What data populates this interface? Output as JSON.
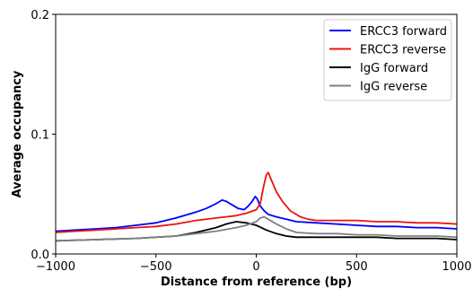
{
  "chart_data": {
    "type": "line",
    "xlabel": "Distance from reference (bp)",
    "ylabel": "Average occupancy",
    "xlim": [
      -1000,
      1000
    ],
    "ylim": [
      0,
      0.2
    ],
    "x_ticks": [
      -1000,
      -500,
      0,
      500,
      1000
    ],
    "x_tick_labels": [
      "−1000",
      "−500",
      "0",
      "500",
      "1000"
    ],
    "y_ticks": [
      0,
      0.1,
      0.2
    ],
    "y_tick_labels": [
      "0.0",
      "0.1",
      "0.2"
    ],
    "grid": false,
    "legend_position": "top-right",
    "series": [
      {
        "name": "ERCC3 forward",
        "color": "#0000ff",
        "x": [
          -1000,
          -900,
          -800,
          -700,
          -600,
          -500,
          -400,
          -300,
          -250,
          -200,
          -170,
          -150,
          -120,
          -90,
          -60,
          -40,
          -20,
          -5,
          5,
          20,
          40,
          60,
          100,
          150,
          200,
          300,
          400,
          500,
          600,
          700,
          800,
          900,
          1000
        ],
        "y": [
          0.019,
          0.02,
          0.021,
          0.022,
          0.024,
          0.026,
          0.03,
          0.035,
          0.038,
          0.042,
          0.045,
          0.044,
          0.041,
          0.038,
          0.037,
          0.04,
          0.044,
          0.048,
          0.046,
          0.04,
          0.036,
          0.033,
          0.031,
          0.029,
          0.027,
          0.026,
          0.025,
          0.024,
          0.023,
          0.023,
          0.022,
          0.022,
          0.021
        ]
      },
      {
        "name": "ERCC3 reverse",
        "color": "#ee1111",
        "x": [
          -1000,
          -900,
          -800,
          -700,
          -600,
          -500,
          -400,
          -300,
          -200,
          -100,
          -50,
          0,
          20,
          35,
          50,
          60,
          70,
          85,
          100,
          130,
          170,
          220,
          260,
          300,
          400,
          500,
          600,
          700,
          800,
          900,
          1000
        ],
        "y": [
          0.018,
          0.019,
          0.02,
          0.021,
          0.022,
          0.023,
          0.025,
          0.028,
          0.03,
          0.032,
          0.034,
          0.037,
          0.042,
          0.055,
          0.066,
          0.068,
          0.064,
          0.058,
          0.052,
          0.044,
          0.036,
          0.031,
          0.029,
          0.028,
          0.028,
          0.028,
          0.027,
          0.027,
          0.026,
          0.026,
          0.025
        ]
      },
      {
        "name": "IgG forward",
        "color": "#000000",
        "x": [
          -1000,
          -800,
          -600,
          -400,
          -300,
          -200,
          -150,
          -100,
          -50,
          0,
          50,
          100,
          150,
          200,
          300,
          400,
          500,
          600,
          700,
          800,
          900,
          1000
        ],
        "y": [
          0.011,
          0.012,
          0.013,
          0.015,
          0.018,
          0.022,
          0.025,
          0.027,
          0.026,
          0.024,
          0.02,
          0.017,
          0.015,
          0.014,
          0.014,
          0.014,
          0.014,
          0.014,
          0.013,
          0.013,
          0.013,
          0.012
        ]
      },
      {
        "name": "IgG reverse",
        "color": "#808080",
        "x": [
          -1000,
          -800,
          -600,
          -400,
          -300,
          -200,
          -100,
          -50,
          0,
          20,
          40,
          60,
          100,
          150,
          200,
          300,
          400,
          500,
          600,
          700,
          800,
          900,
          1000
        ],
        "y": [
          0.011,
          0.012,
          0.013,
          0.015,
          0.017,
          0.019,
          0.022,
          0.024,
          0.027,
          0.03,
          0.031,
          0.029,
          0.025,
          0.021,
          0.018,
          0.017,
          0.017,
          0.016,
          0.016,
          0.015,
          0.015,
          0.015,
          0.014
        ]
      }
    ]
  }
}
